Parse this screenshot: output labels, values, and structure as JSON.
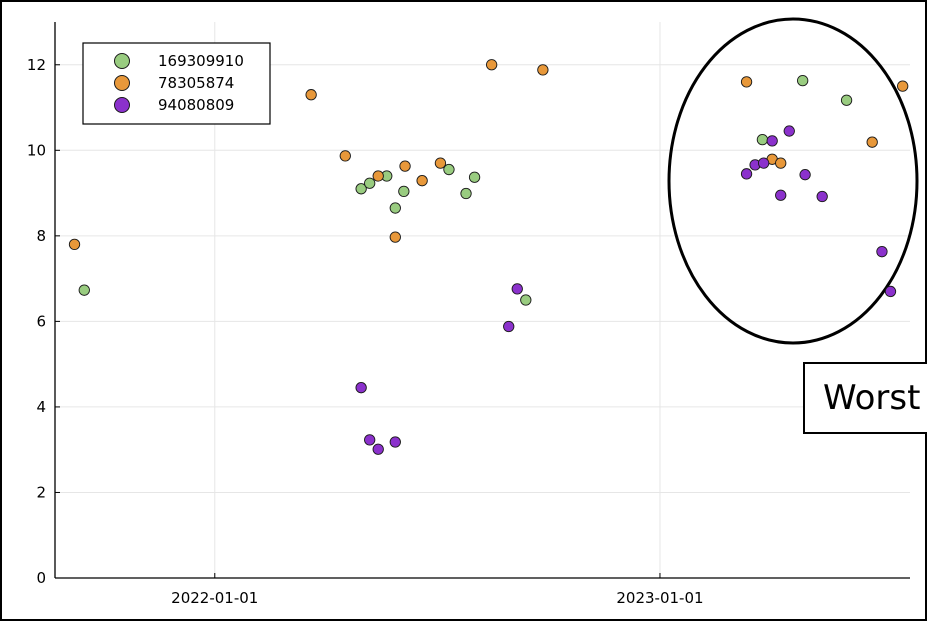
{
  "chart_data": {
    "type": "scatter",
    "x_axis_type": "date",
    "xlim": [
      "2021-08-23",
      "2023-07-25"
    ],
    "ylim": [
      0,
      13
    ],
    "x_ticks": [
      "2022-01-01",
      "2023-01-01"
    ],
    "y_ticks": [
      0,
      2,
      4,
      6,
      8,
      10,
      12
    ],
    "grid": true,
    "legend_position": "top-left",
    "title": "",
    "xlabel": "",
    "ylabel": "",
    "series": [
      {
        "name": "169309910",
        "color": "#99CC80",
        "points": [
          {
            "x": "2021-09-16",
            "y": 6.73
          },
          {
            "x": "2022-05-01",
            "y": 9.1
          },
          {
            "x": "2022-05-08",
            "y": 9.23
          },
          {
            "x": "2022-05-22",
            "y": 9.4
          },
          {
            "x": "2022-05-29",
            "y": 8.65
          },
          {
            "x": "2022-06-05",
            "y": 9.04
          },
          {
            "x": "2022-07-12",
            "y": 9.55
          },
          {
            "x": "2022-07-26",
            "y": 8.99
          },
          {
            "x": "2022-08-02",
            "y": 9.37
          },
          {
            "x": "2022-09-13",
            "y": 6.5
          },
          {
            "x": "2023-03-26",
            "y": 10.25
          },
          {
            "x": "2023-04-28",
            "y": 11.63
          },
          {
            "x": "2023-06-03",
            "y": 11.17
          }
        ]
      },
      {
        "name": "78305874",
        "color": "#E8983A",
        "points": [
          {
            "x": "2021-09-08",
            "y": 7.8
          },
          {
            "x": "2022-03-21",
            "y": 11.3
          },
          {
            "x": "2022-04-18",
            "y": 9.87
          },
          {
            "x": "2022-05-15",
            "y": 9.4
          },
          {
            "x": "2022-05-29",
            "y": 7.97
          },
          {
            "x": "2022-06-06",
            "y": 9.63
          },
          {
            "x": "2022-06-20",
            "y": 9.29
          },
          {
            "x": "2022-07-05",
            "y": 9.7
          },
          {
            "x": "2022-08-16",
            "y": 12.0
          },
          {
            "x": "2022-09-27",
            "y": 11.88
          },
          {
            "x": "2023-03-13",
            "y": 11.6
          },
          {
            "x": "2023-04-03",
            "y": 9.79
          },
          {
            "x": "2023-04-10",
            "y": 9.7
          },
          {
            "x": "2023-06-24",
            "y": 10.19
          },
          {
            "x": "2023-07-19",
            "y": 11.5
          }
        ]
      },
      {
        "name": "94080809",
        "color": "#8B31CC",
        "points": [
          {
            "x": "2022-05-01",
            "y": 4.45
          },
          {
            "x": "2022-05-08",
            "y": 3.23
          },
          {
            "x": "2022-05-15",
            "y": 3.01
          },
          {
            "x": "2022-05-29",
            "y": 3.18
          },
          {
            "x": "2022-08-30",
            "y": 5.88
          },
          {
            "x": "2022-09-06",
            "y": 6.76
          },
          {
            "x": "2023-03-13",
            "y": 9.45
          },
          {
            "x": "2023-03-20",
            "y": 9.66
          },
          {
            "x": "2023-03-27",
            "y": 9.7
          },
          {
            "x": "2023-04-03",
            "y": 10.22
          },
          {
            "x": "2023-04-10",
            "y": 8.95
          },
          {
            "x": "2023-04-17",
            "y": 10.45
          },
          {
            "x": "2023-04-30",
            "y": 9.43
          },
          {
            "x": "2023-05-14",
            "y": 8.92
          },
          {
            "x": "2023-07-02",
            "y": 7.63
          },
          {
            "x": "2023-07-09",
            "y": 6.7
          }
        ]
      }
    ]
  },
  "callout": {
    "text": "Worst"
  }
}
